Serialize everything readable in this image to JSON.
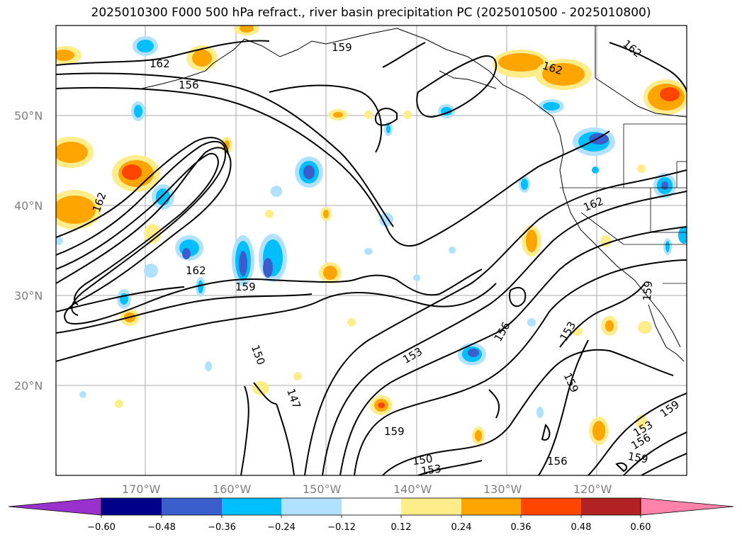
{
  "title": "2025010300 F000 500 hPa refract., river basin precipitation PC (2025010500 - 2025010800)",
  "map": {
    "lat_labels": [
      "50°N",
      "40°N",
      "30°N",
      "20°N"
    ],
    "lon_labels": [
      "170°W",
      "160°W",
      "150°W",
      "140°W",
      "130°W",
      "120°W"
    ],
    "contour_labels": [
      "159",
      "162",
      "162",
      "162",
      "156",
      "162",
      "162",
      "159",
      "162",
      "159",
      "159",
      "150",
      "147",
      "153",
      "156",
      "153",
      "159",
      "159",
      "150",
      "153",
      "156",
      "153",
      "156",
      "159",
      "150",
      "153",
      "159"
    ]
  },
  "colorbar": {
    "ticks": [
      "−0.60",
      "−0.48",
      "−0.36",
      "−0.24",
      "−0.12",
      "0.12",
      "0.24",
      "0.36",
      "0.48",
      "0.60"
    ],
    "colors": [
      "#9932cc",
      "#00008b",
      "#3a5fcd",
      "#00bfff",
      "#b0e2ff",
      "#ffffff",
      "#ffec8b",
      "#ffa500",
      "#ff4500",
      "#b22222",
      "#ff82ab"
    ]
  }
}
